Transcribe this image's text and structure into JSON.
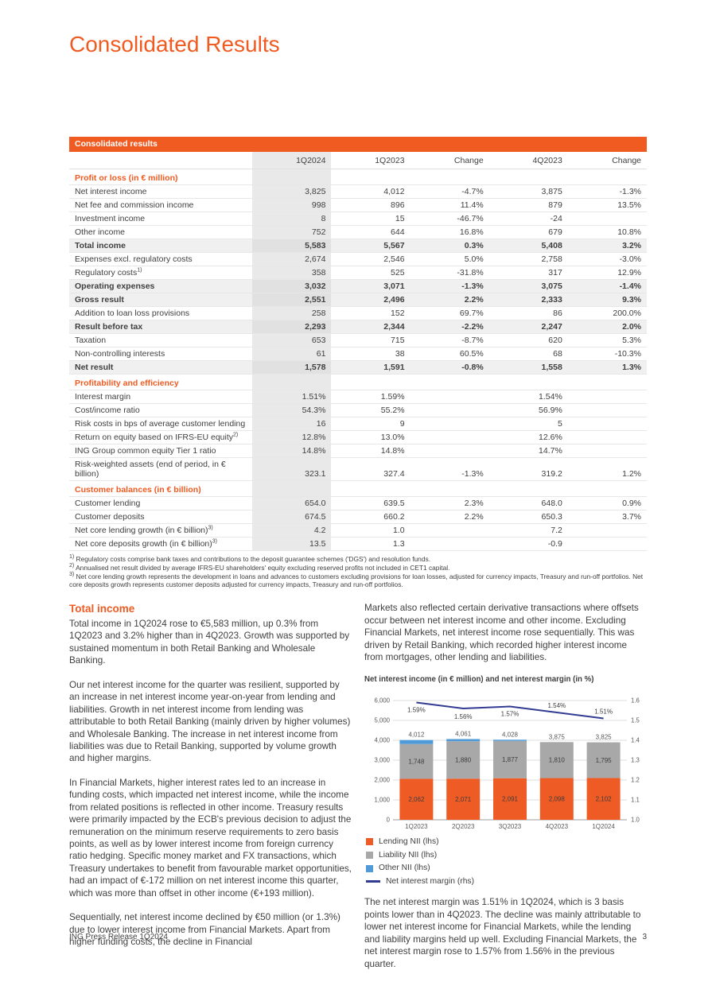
{
  "page": {
    "title": "Consolidated Results",
    "footer_left": "ING Press Release 1Q2024",
    "footer_page": "3"
  },
  "table": {
    "header_bar": "Consolidated results",
    "columns": [
      "",
      "1Q2024",
      "1Q2023",
      "Change",
      "4Q2023",
      "Change"
    ],
    "sections": [
      {
        "title": "Profit or loss (in € million)",
        "rows": [
          {
            "label": "Net interest income",
            "values": [
              "3,825",
              "4,012",
              "-4.7%",
              "3,875",
              "-1.3%"
            ],
            "bold": false
          },
          {
            "label": "Net fee and commission income",
            "values": [
              "998",
              "896",
              "11.4%",
              "879",
              "13.5%"
            ],
            "bold": false
          },
          {
            "label": "Investment income",
            "values": [
              "8",
              "15",
              "-46.7%",
              "-24",
              ""
            ],
            "bold": false
          },
          {
            "label": "Other income",
            "values": [
              "752",
              "644",
              "16.8%",
              "679",
              "10.8%"
            ],
            "bold": false
          },
          {
            "label": "Total income",
            "values": [
              "5,583",
              "5,567",
              "0.3%",
              "5,408",
              "3.2%"
            ],
            "bold": true
          },
          {
            "label": "Expenses excl. regulatory costs",
            "values": [
              "2,674",
              "2,546",
              "5.0%",
              "2,758",
              "-3.0%"
            ],
            "bold": false
          },
          {
            "label": "Regulatory costs",
            "sup": "1)",
            "values": [
              "358",
              "525",
              "-31.8%",
              "317",
              "12.9%"
            ],
            "bold": false
          },
          {
            "label": "Operating expenses",
            "values": [
              "3,032",
              "3,071",
              "-1.3%",
              "3,075",
              "-1.4%"
            ],
            "bold": true
          },
          {
            "label": "Gross result",
            "values": [
              "2,551",
              "2,496",
              "2.2%",
              "2,333",
              "9.3%"
            ],
            "bold": true
          },
          {
            "label": "Addition to loan loss provisions",
            "values": [
              "258",
              "152",
              "69.7%",
              "86",
              "200.0%"
            ],
            "bold": false
          },
          {
            "label": "Result before tax",
            "values": [
              "2,293",
              "2,344",
              "-2.2%",
              "2,247",
              "2.0%"
            ],
            "bold": true
          },
          {
            "label": "Taxation",
            "values": [
              "653",
              "715",
              "-8.7%",
              "620",
              "5.3%"
            ],
            "bold": false
          },
          {
            "label": "Non-controlling interests",
            "values": [
              "61",
              "38",
              "60.5%",
              "68",
              "-10.3%"
            ],
            "bold": false
          },
          {
            "label": "Net result",
            "values": [
              "1,578",
              "1,591",
              "-0.8%",
              "1,558",
              "1.3%"
            ],
            "bold": true
          }
        ]
      },
      {
        "title": "Profitability and efficiency",
        "rows": [
          {
            "label": "Interest margin",
            "values": [
              "1.51%",
              "1.59%",
              "",
              "1.54%",
              ""
            ],
            "bold": false
          },
          {
            "label": "Cost/income ratio",
            "values": [
              "54.3%",
              "55.2%",
              "",
              "56.9%",
              ""
            ],
            "bold": false
          },
          {
            "label": "Risk costs in bps of average customer lending",
            "values": [
              "16",
              "9",
              "",
              "5",
              ""
            ],
            "bold": false
          },
          {
            "label": "Return on equity based on IFRS-EU equity",
            "sup": "2)",
            "values": [
              "12.8%",
              "13.0%",
              "",
              "12.6%",
              ""
            ],
            "bold": false
          },
          {
            "label": "ING Group common equity Tier 1 ratio",
            "values": [
              "14.8%",
              "14.8%",
              "",
              "14.7%",
              ""
            ],
            "bold": false
          },
          {
            "label": "Risk-weighted assets (end of period, in € billion)",
            "values": [
              "323.1",
              "327.4",
              "-1.3%",
              "319.2",
              "1.2%"
            ],
            "bold": false
          }
        ]
      },
      {
        "title": "Customer balances (in € billion)",
        "rows": [
          {
            "label": "Customer lending",
            "values": [
              "654.0",
              "639.5",
              "2.3%",
              "648.0",
              "0.9%"
            ],
            "bold": false
          },
          {
            "label": "Customer deposits",
            "values": [
              "674.5",
              "660.2",
              "2.2%",
              "650.3",
              "3.7%"
            ],
            "bold": false
          },
          {
            "label": "Net core lending growth (in € billion)",
            "sup": "3)",
            "values": [
              "4.2",
              "1.0",
              "",
              "7.2",
              ""
            ],
            "bold": false
          },
          {
            "label": "Net core deposits growth (in € billion)",
            "sup": "3)",
            "values": [
              "13.5",
              "1.3",
              "",
              "-0.9",
              ""
            ],
            "bold": false
          }
        ]
      }
    ],
    "footnotes": [
      {
        "marker": "1)",
        "text": "Regulatory costs comprise bank taxes and contributions to the deposit guarantee schemes ('DGS') and resolution funds."
      },
      {
        "marker": "2)",
        "text": "Annualised net result divided by average IFRS-EU shareholders' equity excluding reserved profits not included in CET1 capital."
      },
      {
        "marker": "3)",
        "text": "Net core lending growth represents the development in loans and advances to customers excluding provisions for loan losses, adjusted for currency impacts, Treasury and run-off portfolios. Net core deposits growth represents customer deposits adjusted for currency impacts, Treasury and run-off portfolios."
      }
    ]
  },
  "article": {
    "heading": "Total income",
    "left_paragraphs": [
      "Total income in 1Q2024 rose to €5,583 million, up 0.3% from 1Q2023 and 3.2% higher than in 4Q2023. Growth was supported by sustained momentum in both Retail Banking and Wholesale Banking.",
      "Our net interest income for the quarter was resilient, supported by an increase in net interest income year-on-year from lending and liabilities. Growth in net interest income from lending was attributable to both Retail Banking (mainly driven by higher volumes) and Wholesale Banking. The increase in net interest income from liabilities was due to Retail Banking, supported by volume growth and higher margins.",
      "In Financial Markets, higher interest rates led to an increase in funding costs, which impacted net interest income, while the income from related positions is reflected in other income. Treasury results were primarily impacted by the ECB's previous decision to adjust the remuneration on the minimum reserve requirements to zero basis points, as well as by lower interest income from foreign currency ratio hedging. Specific money market and FX transactions, which Treasury undertakes to benefit from favourable market opportunities, had an impact of €-172 million on net interest income this quarter, which was more than offset in other income (€+193 million).",
      "Sequentially, net interest income declined by €50 million (or 1.3%) due to lower interest income from Financial Markets. Apart from higher funding costs, the decline in Financial"
    ],
    "right_paragraphs_before_chart": [
      "Markets also reflected certain derivative transactions where offsets occur between net interest income and other income. Excluding Financial Markets, net interest income rose sequentially. This was driven by Retail Banking, which recorded higher interest income from mortgages, other lending and liabilities."
    ],
    "right_paragraphs_after_chart": [
      "The net interest margin was 1.51% in 1Q2024, which is 3 basis points lower than in 4Q2023. The decline was mainly attributable to lower net interest income for Financial Markets, while the lending and liability margins held up well. Excluding Financial Markets, the net interest margin rose to 1.57% from 1.56% in the previous quarter."
    ]
  },
  "chart_data": {
    "type": "bar",
    "subtype": "stacked-bar-with-line",
    "title": "Net interest income (in € million) and net interest margin (in %)",
    "categories": [
      "1Q2023",
      "2Q2023",
      "3Q2023",
      "4Q2023",
      "1Q2024"
    ],
    "series": [
      {
        "name": "Lending NII (lhs)",
        "type": "bar",
        "color": "#ef5b24",
        "values": [
          2062,
          2071,
          2091,
          2098,
          2102
        ]
      },
      {
        "name": "Liability NII (lhs)",
        "type": "bar",
        "color": "#a8a8a8",
        "values": [
          1748,
          1880,
          1877,
          1810,
          1795
        ]
      },
      {
        "name": "Other NII (lhs)",
        "type": "bar",
        "color": "#4f9bd9",
        "values": [
          202,
          110,
          60,
          -33,
          -72
        ]
      },
      {
        "name": "Net interest margin (rhs)",
        "type": "line",
        "color": "#323c92",
        "values": [
          1.59,
          1.56,
          1.57,
          1.54,
          1.51
        ]
      }
    ],
    "bar_labels": {
      "lending": [
        "2,062",
        "2,071",
        "2,091",
        "2,098",
        "2,102"
      ],
      "liability": [
        "1,748",
        "1,880",
        "1,877",
        "1,810",
        "1,795"
      ],
      "totals": [
        "4,012",
        "4,061",
        "4,028",
        "3,875",
        "3,825"
      ]
    },
    "line_labels": [
      "1.59%",
      "1.56%",
      "1.57%",
      "1.54%",
      "1.51%"
    ],
    "left_axis": {
      "min": 0,
      "max": 6000,
      "step": 1000,
      "tick_labels": [
        "0",
        "1,000",
        "2,000",
        "3,000",
        "4,000",
        "5,000",
        "6,000"
      ]
    },
    "right_axis": {
      "min": 1.0,
      "max": 1.6,
      "tick_labels": [
        "1.0",
        "1.1",
        "1.2",
        "1.3",
        "1.4",
        "1.5",
        "1.6"
      ]
    },
    "grid": true,
    "legend_position": "bottom-left",
    "legend": [
      {
        "label": "Lending NII (lhs)",
        "color": "#ef5b24",
        "shape": "square",
        "icon": "lending-nii-swatch"
      },
      {
        "label": "Liability NII (lhs)",
        "color": "#a8a8a8",
        "shape": "square",
        "icon": "liability-nii-swatch"
      },
      {
        "label": "Other NII (lhs)",
        "color": "#4f9bd9",
        "shape": "square",
        "icon": "other-nii-swatch"
      },
      {
        "label": "Net interest margin (rhs)",
        "color": "#323c92",
        "shape": "line",
        "icon": "net-interest-margin-line-swatch"
      }
    ]
  }
}
